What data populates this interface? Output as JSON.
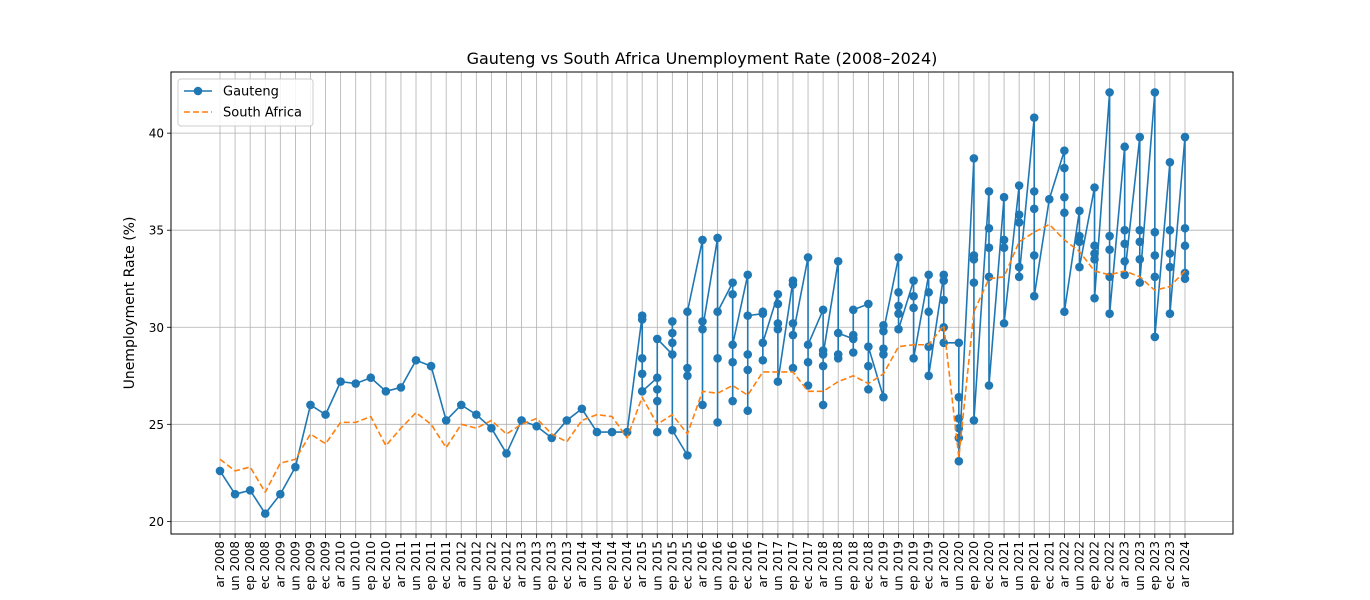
{
  "chart_data": {
    "type": "line",
    "title": "Gauteng vs South Africa Unemployment Rate (2008–2024)",
    "xlabel": "",
    "ylabel": "Unemployment Rate (%)",
    "ylim": [
      19.35,
      43.15
    ],
    "yticks": [
      20,
      25,
      30,
      35,
      40
    ],
    "grid": true,
    "legend_position": "top-left",
    "categories": [
      "ar 2008",
      "un 2008",
      "ep 2008",
      "ec 2008",
      "ar 2009",
      "un 2009",
      "ep 2009",
      "ec 2009",
      "ar 2010",
      "un 2010",
      "ep 2010",
      "ec 2010",
      "ar 2011",
      "un 2011",
      "ep 2011",
      "ec 2011",
      "ar 2012",
      "un 2012",
      "ep 2012",
      "ec 2012",
      "ar 2013",
      "un 2013",
      "ep 2013",
      "ec 2013",
      "ar 2014",
      "un 2014",
      "ep 2014",
      "ec 2014",
      "ar 2015",
      "un 2015",
      "ep 2015",
      "ec 2015",
      "ar 2016",
      "un 2016",
      "ep 2016",
      "ec 2016",
      "ar 2017",
      "un 2017",
      "ep 2017",
      "ec 2017",
      "ar 2018",
      "un 2018",
      "ep 2018",
      "ec 2018",
      "ar 2019",
      "un 2019",
      "ep 2019",
      "ec 2019",
      "ar 2020",
      "un 2020",
      "ep 2020",
      "ec 2020",
      "ar 2021",
      "un 2021",
      "ep 2021",
      "ec 2021",
      "ar 2022",
      "un 2022",
      "ep 2022",
      "ec 2022",
      "ar 2023",
      "un 2023",
      "ep 2023",
      "ec 2023",
      "ar 2024"
    ],
    "series": [
      {
        "name": "Gauteng",
        "style": "solid-marker",
        "color": "#1f77b4",
        "points": [
          [
            0,
            22.6
          ],
          [
            1,
            21.4
          ],
          [
            2,
            21.6
          ],
          [
            3,
            20.4
          ],
          [
            4,
            21.4
          ],
          [
            5,
            22.8
          ],
          [
            6,
            26.0
          ],
          [
            7,
            25.5
          ],
          [
            8,
            27.2
          ],
          [
            9,
            27.1
          ],
          [
            10,
            27.4
          ],
          [
            11,
            26.7
          ],
          [
            12,
            26.9
          ],
          [
            13,
            28.3
          ],
          [
            14,
            28.0
          ],
          [
            15,
            25.2
          ],
          [
            16,
            26.0
          ],
          [
            17,
            25.5
          ],
          [
            18,
            24.8
          ],
          [
            19,
            23.5
          ],
          [
            20,
            25.2
          ],
          [
            21,
            24.9
          ],
          [
            22,
            24.3
          ],
          [
            23,
            25.2
          ],
          [
            24,
            25.8
          ],
          [
            25,
            24.6
          ],
          [
            26,
            24.6
          ],
          [
            27,
            24.6
          ],
          [
            28,
            30.6
          ],
          [
            28,
            30.4
          ],
          [
            28,
            28.4
          ],
          [
            28,
            27.6
          ],
          [
            28,
            26.7
          ],
          [
            29,
            27.4
          ],
          [
            29,
            26.8
          ],
          [
            29,
            26.2
          ],
          [
            29,
            24.6
          ],
          [
            29,
            29.4
          ],
          [
            30,
            28.6
          ],
          [
            30,
            29.2
          ],
          [
            30,
            29.7
          ],
          [
            30,
            30.3
          ],
          [
            30,
            24.7
          ],
          [
            31,
            23.4
          ],
          [
            31,
            27.9
          ],
          [
            31,
            27.5
          ],
          [
            31,
            30.8
          ],
          [
            32,
            34.5
          ],
          [
            32,
            26.0
          ],
          [
            32,
            30.3
          ],
          [
            32,
            29.9
          ],
          [
            33,
            34.6
          ],
          [
            33,
            25.1
          ],
          [
            33,
            28.4
          ],
          [
            33,
            30.8
          ],
          [
            34,
            32.3
          ],
          [
            34,
            31.7
          ],
          [
            34,
            26.2
          ],
          [
            34,
            28.2
          ],
          [
            34,
            29.1
          ],
          [
            35,
            32.7
          ],
          [
            35,
            25.7
          ],
          [
            35,
            27.8
          ],
          [
            35,
            28.6
          ],
          [
            35,
            30.6
          ],
          [
            36,
            30.7
          ],
          [
            36,
            30.8
          ],
          [
            36,
            28.3
          ],
          [
            36,
            29.2
          ],
          [
            37,
            31.7
          ],
          [
            37,
            31.2
          ],
          [
            37,
            30.2
          ],
          [
            37,
            29.9
          ],
          [
            37,
            27.2
          ],
          [
            38,
            32.4
          ],
          [
            38,
            32.2
          ],
          [
            38,
            27.9
          ],
          [
            38,
            30.2
          ],
          [
            38,
            29.6
          ],
          [
            39,
            33.6
          ],
          [
            39,
            27.0
          ],
          [
            39,
            28.2
          ],
          [
            39,
            29.1
          ],
          [
            40,
            30.9
          ],
          [
            40,
            26.0
          ],
          [
            40,
            28.0
          ],
          [
            40,
            28.8
          ],
          [
            40,
            28.6
          ],
          [
            41,
            33.4
          ],
          [
            41,
            28.4
          ],
          [
            41,
            28.6
          ],
          [
            41,
            29.7
          ],
          [
            42,
            29.4
          ],
          [
            42,
            29.6
          ],
          [
            42,
            28.7
          ],
          [
            42,
            30.9
          ],
          [
            43,
            31.2
          ],
          [
            43,
            28.0
          ],
          [
            43,
            26.8
          ],
          [
            43,
            29.0
          ],
          [
            44,
            26.4
          ],
          [
            44,
            28.9
          ],
          [
            44,
            28.6
          ],
          [
            44,
            30.1
          ],
          [
            44,
            29.8
          ],
          [
            45,
            33.6
          ],
          [
            45,
            31.8
          ],
          [
            45,
            31.1
          ],
          [
            45,
            30.7
          ],
          [
            45,
            29.9
          ],
          [
            46,
            32.4
          ],
          [
            46,
            31.6
          ],
          [
            46,
            31.0
          ],
          [
            46,
            28.4
          ],
          [
            47,
            32.7
          ],
          [
            47,
            31.8
          ],
          [
            47,
            30.8
          ],
          [
            47,
            29.0
          ],
          [
            47,
            27.5
          ],
          [
            48,
            32.7
          ],
          [
            48,
            32.4
          ],
          [
            48,
            31.4
          ],
          [
            48,
            30.0
          ],
          [
            48,
            29.2
          ],
          [
            49,
            29.2
          ],
          [
            49,
            26.4
          ],
          [
            49,
            25.3
          ],
          [
            49,
            24.8
          ],
          [
            49,
            24.3
          ],
          [
            49,
            23.1
          ],
          [
            50,
            38.7
          ],
          [
            50,
            33.7
          ],
          [
            50,
            33.5
          ],
          [
            50,
            32.3
          ],
          [
            50,
            25.2
          ],
          [
            51,
            37.0
          ],
          [
            51,
            35.1
          ],
          [
            51,
            34.1
          ],
          [
            51,
            32.6
          ],
          [
            51,
            27.0
          ],
          [
            52,
            36.7
          ],
          [
            52,
            34.5
          ],
          [
            52,
            34.1
          ],
          [
            52,
            30.2
          ],
          [
            53,
            37.3
          ],
          [
            53,
            35.8
          ],
          [
            53,
            35.4
          ],
          [
            53,
            33.1
          ],
          [
            53,
            32.6
          ],
          [
            54,
            40.8
          ],
          [
            54,
            37.0
          ],
          [
            54,
            36.1
          ],
          [
            54,
            33.7
          ],
          [
            54,
            31.6
          ],
          [
            55,
            36.6
          ],
          [
            56,
            39.1
          ],
          [
            56,
            38.2
          ],
          [
            56,
            36.7
          ],
          [
            56,
            35.9
          ],
          [
            56,
            30.8
          ],
          [
            57,
            36.0
          ],
          [
            57,
            34.7
          ],
          [
            57,
            34.4
          ],
          [
            57,
            33.1
          ],
          [
            58,
            37.2
          ],
          [
            58,
            34.2
          ],
          [
            58,
            33.8
          ],
          [
            58,
            33.5
          ],
          [
            58,
            31.5
          ],
          [
            59,
            42.1
          ],
          [
            59,
            34.7
          ],
          [
            59,
            34.0
          ],
          [
            59,
            32.6
          ],
          [
            59,
            30.7
          ],
          [
            60,
            39.3
          ],
          [
            60,
            35.0
          ],
          [
            60,
            34.3
          ],
          [
            60,
            33.4
          ],
          [
            60,
            32.7
          ],
          [
            61,
            39.8
          ],
          [
            61,
            35.0
          ],
          [
            61,
            34.4
          ],
          [
            61,
            33.5
          ],
          [
            61,
            32.3
          ],
          [
            62,
            42.1
          ],
          [
            62,
            34.9
          ],
          [
            62,
            33.7
          ],
          [
            62,
            32.6
          ],
          [
            62,
            29.5
          ],
          [
            63,
            38.5
          ],
          [
            63,
            35.0
          ],
          [
            63,
            33.8
          ],
          [
            63,
            33.1
          ],
          [
            63,
            30.7
          ],
          [
            64,
            39.8
          ],
          [
            64,
            35.1
          ],
          [
            64,
            34.2
          ],
          [
            64,
            32.8
          ],
          [
            64,
            32.5
          ]
        ]
      },
      {
        "name": "South Africa",
        "style": "dashed",
        "color": "#ff7f0e",
        "points": [
          [
            0,
            23.2
          ],
          [
            1,
            22.6
          ],
          [
            2,
            22.8
          ],
          [
            3,
            21.5
          ],
          [
            4,
            23.0
          ],
          [
            5,
            23.2
          ],
          [
            6,
            24.5
          ],
          [
            7,
            24.0
          ],
          [
            8,
            25.1
          ],
          [
            9,
            25.1
          ],
          [
            10,
            25.4
          ],
          [
            11,
            23.9
          ],
          [
            12,
            24.8
          ],
          [
            13,
            25.6
          ],
          [
            14,
            25.0
          ],
          [
            15,
            23.8
          ],
          [
            16,
            25.0
          ],
          [
            17,
            24.8
          ],
          [
            18,
            25.2
          ],
          [
            19,
            24.5
          ],
          [
            20,
            25.0
          ],
          [
            21,
            25.3
          ],
          [
            22,
            24.5
          ],
          [
            23,
            24.1
          ],
          [
            24,
            25.2
          ],
          [
            25,
            25.5
          ],
          [
            26,
            25.4
          ],
          [
            27,
            24.3
          ],
          [
            28,
            26.4
          ],
          [
            29,
            25.0
          ],
          [
            30,
            25.5
          ],
          [
            31,
            24.5
          ],
          [
            32,
            26.7
          ],
          [
            33,
            26.6
          ],
          [
            34,
            27.0
          ],
          [
            35,
            26.5
          ],
          [
            36,
            27.7
          ],
          [
            37,
            27.7
          ],
          [
            38,
            27.7
          ],
          [
            39,
            26.7
          ],
          [
            40,
            26.7
          ],
          [
            41,
            27.2
          ],
          [
            42,
            27.5
          ],
          [
            43,
            27.1
          ],
          [
            44,
            27.6
          ],
          [
            45,
            29.0
          ],
          [
            46,
            29.1
          ],
          [
            47,
            29.1
          ],
          [
            48,
            30.1
          ],
          [
            49,
            23.3
          ],
          [
            50,
            30.8
          ],
          [
            51,
            32.5
          ],
          [
            52,
            32.6
          ],
          [
            53,
            34.4
          ],
          [
            54,
            34.9
          ],
          [
            55,
            35.3
          ],
          [
            56,
            34.5
          ],
          [
            57,
            33.9
          ],
          [
            58,
            32.9
          ],
          [
            59,
            32.7
          ],
          [
            60,
            32.9
          ],
          [
            61,
            32.6
          ],
          [
            62,
            31.9
          ],
          [
            63,
            32.1
          ],
          [
            64,
            32.9
          ]
        ]
      }
    ]
  }
}
